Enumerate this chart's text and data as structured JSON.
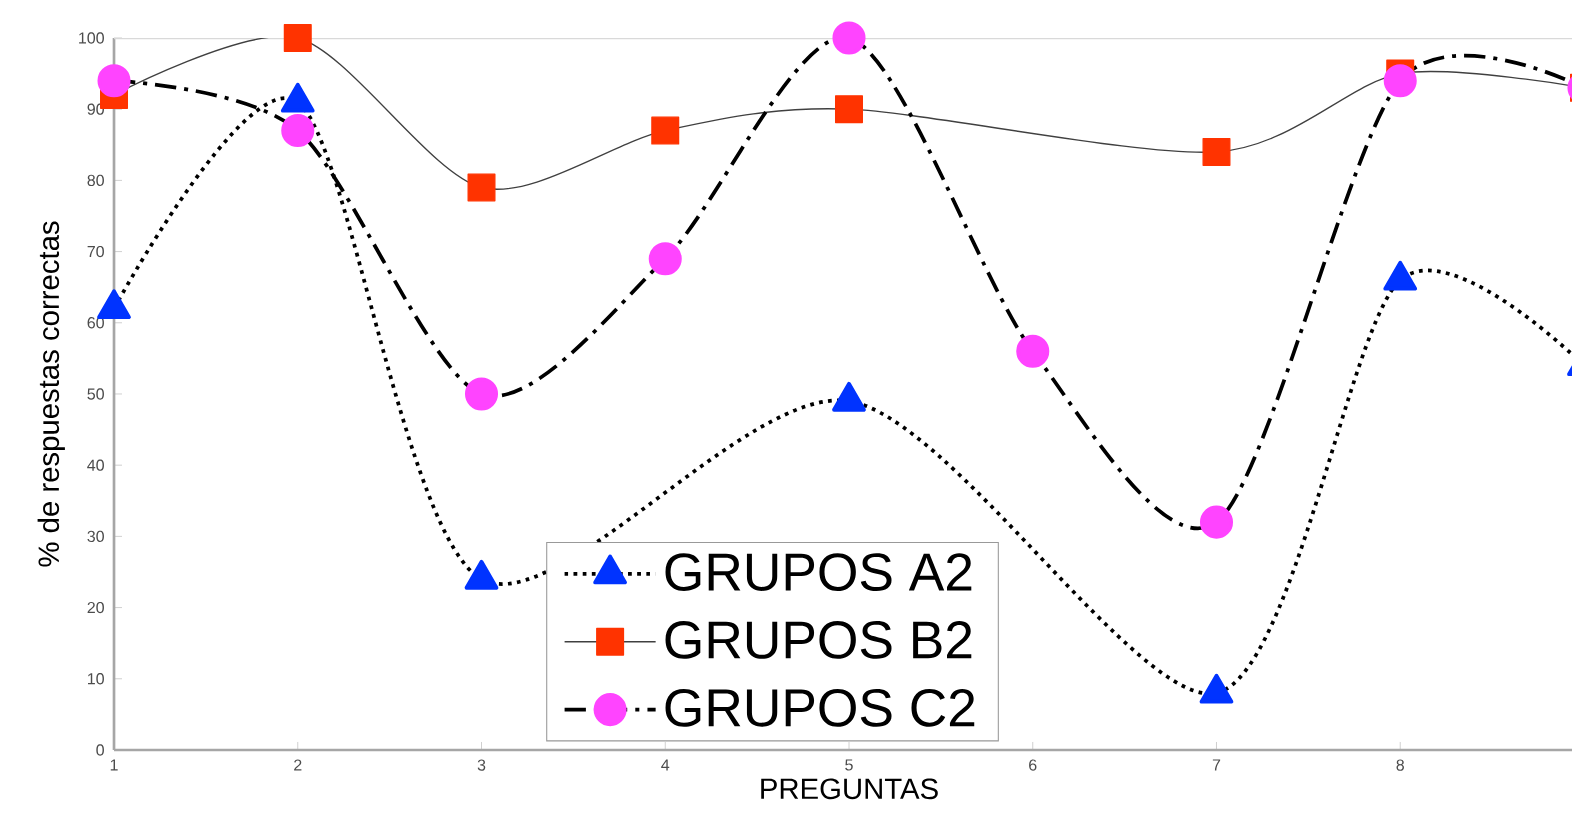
{
  "chart_data": {
    "type": "line",
    "xlabel": "PREGUNTAS",
    "ylabel": "% de respuestas correctas",
    "categories": [
      "1",
      "2",
      "3",
      "4",
      "5",
      "6",
      "7",
      "8",
      null
    ],
    "ylim": [
      0,
      100
    ],
    "yticks": [
      0,
      10,
      20,
      30,
      40,
      50,
      60,
      70,
      80,
      90,
      100
    ],
    "legend": "bottom",
    "grid": false,
    "series": [
      {
        "name": "GRUPOS A2",
        "color": "#0033ff",
        "marker": "triangle",
        "line_style": "dotted",
        "values": [
          62,
          91,
          24,
          null,
          49,
          null,
          8,
          66,
          54
        ]
      },
      {
        "name": "GRUPOS B2",
        "color": "#ff3300",
        "marker": "square",
        "line_style": "solid",
        "values": [
          92,
          100,
          79,
          87,
          90,
          null,
          84,
          95,
          93
        ]
      },
      {
        "name": "GRUPOS  C2",
        "color": "#ff44ff",
        "marker": "circle",
        "line_style": "dashdot",
        "values": [
          94,
          87,
          50,
          69,
          100,
          56,
          32,
          94,
          93
        ]
      }
    ]
  }
}
